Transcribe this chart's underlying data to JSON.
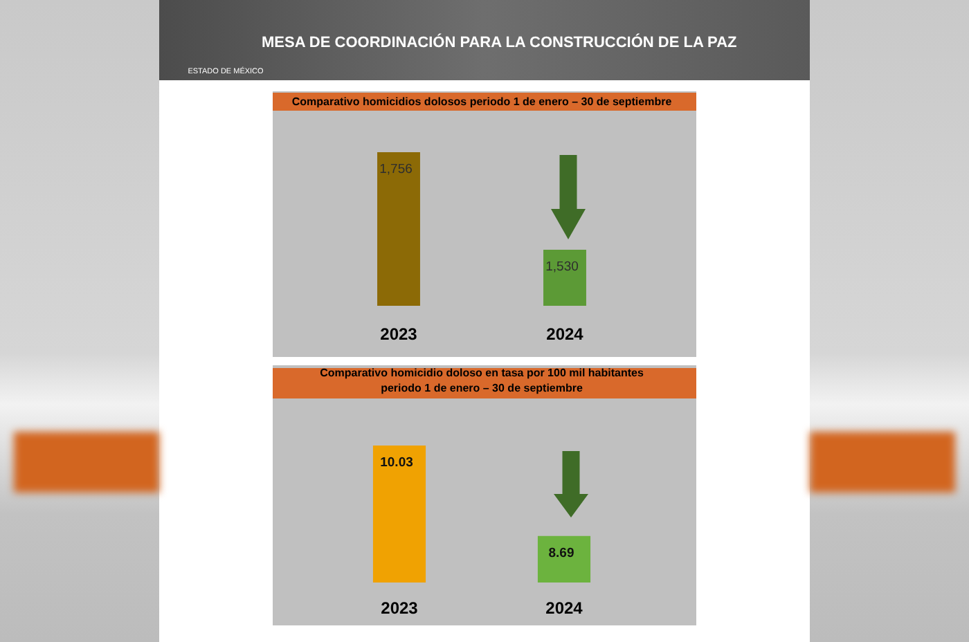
{
  "chart_data": [
    {
      "type": "other",
      "title": "MESA DE COORDINACIÓN PARA LA CONSTRUCCIÓN DE LA PAZ",
      "annotations": [
        "ESTADO DE MÉXICO"
      ]
    },
    {
      "type": "bar",
      "title": "Comparativo homicidios dolosos periodo 1 de enero – 30 de septiembre",
      "categories": [
        "2023",
        "2024"
      ],
      "values": [
        1756,
        1530
      ],
      "colors": [
        "#8c6a06",
        "#5c9a36"
      ],
      "value_labels": [
        "1,756",
        "1,530"
      ],
      "ylim": [
        1400,
        1756
      ],
      "tick_labels": "x"
    },
    {
      "type": "bar",
      "title": "Comparativo homicidio doloso en tasa por 100 mil habitantes\nperiodo 1 de enero – 30 de septiembre",
      "categories": [
        "2023",
        "2024"
      ],
      "values": [
        10.03,
        8.69
      ],
      "colors": [
        "#f0a202",
        "#6cb33e"
      ],
      "data_labels": true,
      "ylim": [
        8,
        10.03
      ],
      "tick_labels": "x"
    }
  ]
}
